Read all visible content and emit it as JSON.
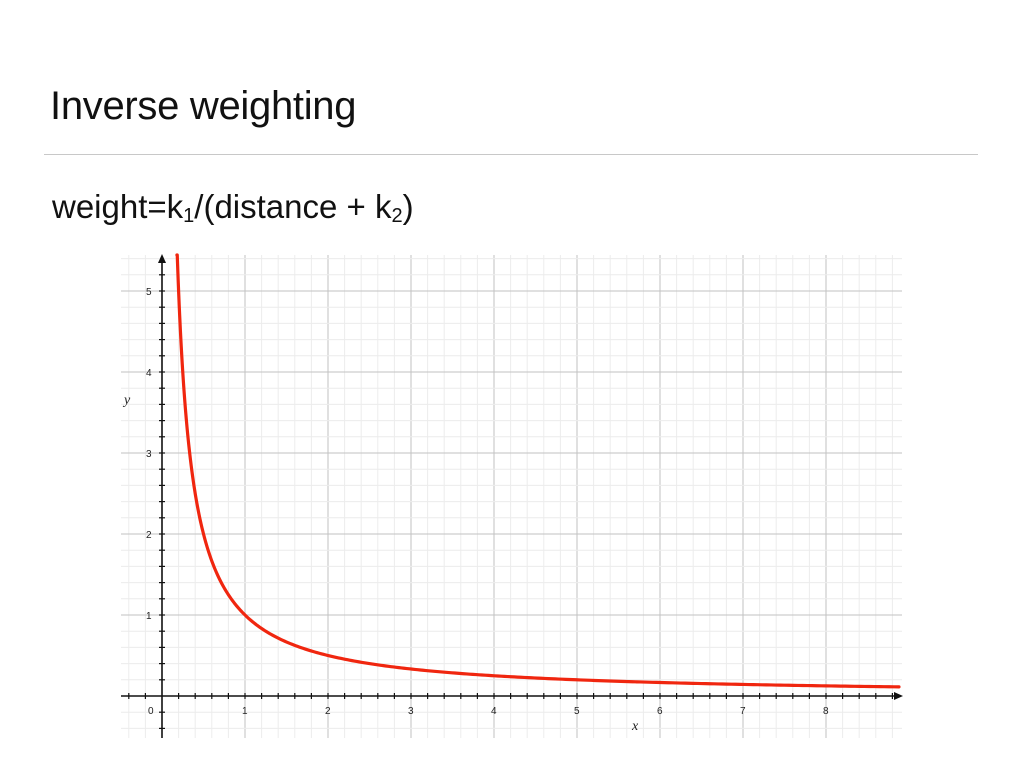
{
  "slide": {
    "title": "Inverse weighting",
    "formula": {
      "prefix": "weight=k",
      "sub1": "1",
      "middle": "/(distance + k",
      "sub2": "2",
      "suffix": ")"
    }
  },
  "chart_data": {
    "type": "line",
    "xlabel": "x",
    "ylabel": "y",
    "xlim": [
      -0.5,
      9
    ],
    "ylim": [
      -0.5,
      5.4
    ],
    "x_ticks": [
      0,
      1,
      2,
      3,
      4,
      5,
      6,
      7,
      8
    ],
    "y_ticks": [
      1,
      2,
      3,
      4,
      5
    ],
    "grid": true,
    "minor_grid_step": 0.2,
    "curve_color": "#f0260f",
    "series": [
      {
        "x": [
          0.18,
          0.2,
          0.25,
          0.3,
          0.4,
          0.5,
          0.6,
          0.8,
          1,
          1.5,
          2,
          2.5,
          3,
          4,
          5,
          6,
          7,
          8,
          9
        ],
        "y": [
          5.4,
          5,
          4,
          3.33,
          2.5,
          2,
          1.67,
          1.25,
          1,
          0.67,
          0.5,
          0.4,
          0.33,
          0.25,
          0.2,
          0.17,
          0.14,
          0.125,
          0.11
        ]
      }
    ]
  }
}
